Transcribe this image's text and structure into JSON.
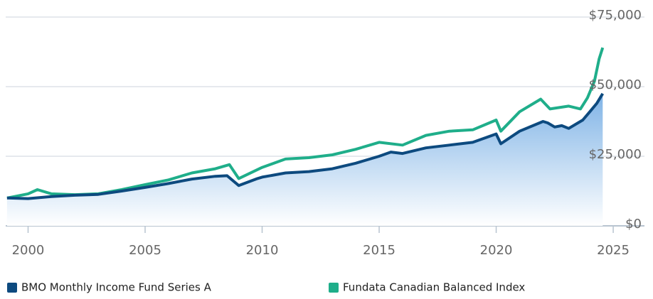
{
  "chart_data": {
    "type": "line",
    "series": [
      {
        "name": "BMO Monthly Income Fund Series A",
        "color": "#0d4a7f",
        "area": true,
        "x": [
          1999.1,
          2000,
          2001,
          2002,
          2003,
          2004,
          2005,
          2006,
          2007,
          2008,
          2008.5,
          2009,
          2009.8,
          2010,
          2011,
          2012,
          2013,
          2014,
          2015,
          2015.5,
          2016,
          2017,
          2018,
          2019,
          2020,
          2020.2,
          2021,
          2022,
          2022.2,
          2022.5,
          2022.8,
          2023.1,
          2023.7,
          2024,
          2024.3,
          2024.55
        ],
        "values": [
          10000,
          9800,
          10500,
          11000,
          11300,
          12500,
          13800,
          15200,
          16800,
          17800,
          18000,
          14500,
          17000,
          17500,
          19000,
          19500,
          20500,
          22500,
          25000,
          26500,
          26000,
          28000,
          29000,
          30000,
          33000,
          29500,
          34000,
          37500,
          37000,
          35500,
          36000,
          35000,
          38000,
          41000,
          44000,
          47500
        ]
      },
      {
        "name": "Fundata Canadian Balanced Index",
        "color": "#1fae8a",
        "x": [
          1999.1,
          2000,
          2000.4,
          2001,
          2002,
          2003,
          2004,
          2005,
          2006,
          2007,
          2008,
          2008.6,
          2009,
          2010,
          2011,
          2012,
          2013,
          2014,
          2015,
          2016,
          2017,
          2018,
          2019,
          2020,
          2020.2,
          2021,
          2021.9,
          2022.3,
          2023.1,
          2023.6,
          2023.9,
          2024.2,
          2024.4,
          2024.55
        ],
        "values": [
          10000,
          11500,
          13000,
          11500,
          11200,
          11500,
          13000,
          14800,
          16500,
          19000,
          20500,
          22000,
          17000,
          21000,
          24000,
          24500,
          25500,
          27500,
          30000,
          29000,
          32500,
          34000,
          34500,
          38000,
          34000,
          41000,
          45500,
          42000,
          43000,
          42000,
          46000,
          52000,
          60000,
          64000
        ]
      }
    ],
    "xlim": [
      1998.8,
      2026.7
    ],
    "xticks": [
      2000,
      2005,
      2010,
      2015,
      2020,
      2025
    ],
    "ylim": [
      0,
      75000
    ],
    "yticks": [
      {
        "value": 0,
        "label": "$0"
      },
      {
        "value": 25000,
        "label": "$25,000"
      },
      {
        "value": 50000,
        "label": "$50,000"
      },
      {
        "value": 75000,
        "label": "$75,000"
      }
    ],
    "grid": true
  }
}
